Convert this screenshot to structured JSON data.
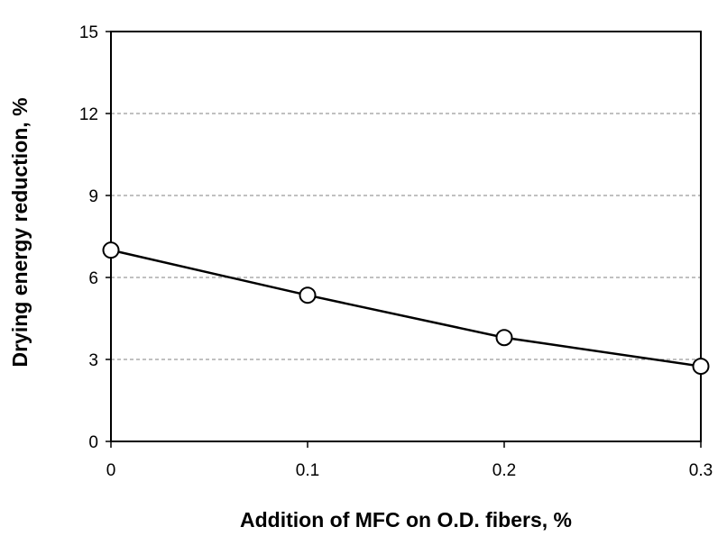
{
  "chart_data": {
    "type": "line",
    "title": "",
    "xlabel": "Addition of MFC on O.D. fibers, %",
    "ylabel": "Drying energy reduction, %",
    "x": [
      0,
      0.1,
      0.2,
      0.3
    ],
    "series": [
      {
        "values": [
          7.0,
          5.35,
          3.8,
          2.75
        ]
      }
    ],
    "xlim": [
      0,
      0.3
    ],
    "ylim": [
      0,
      15
    ],
    "x_ticks": [
      "0",
      "0.1",
      "0.2",
      "0.3"
    ],
    "y_ticks": [
      "0",
      "3",
      "6",
      "9",
      "12",
      "15"
    ],
    "grid": "horizontal dashed",
    "legend": "none",
    "colors": {
      "line": "#000000",
      "marker_fill": "#ffffff",
      "marker_stroke": "#000000",
      "grid": "#808080",
      "axis": "#000000"
    }
  }
}
